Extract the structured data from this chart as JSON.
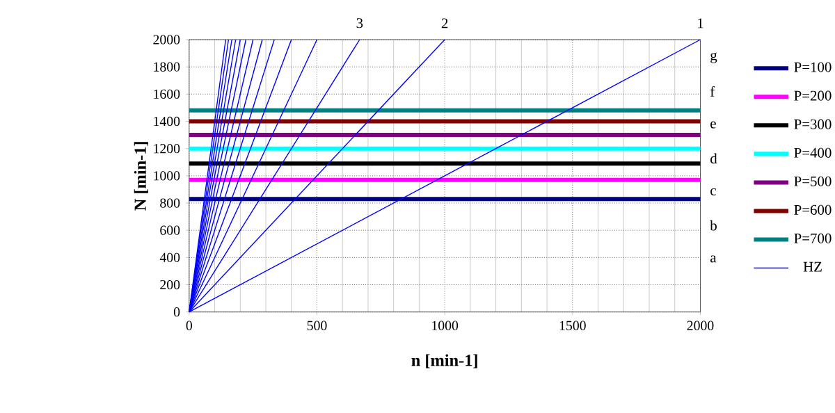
{
  "chart_data": {
    "type": "line",
    "xlabel": "n [min-1]",
    "ylabel": "N [min-1]",
    "xlim": [
      0,
      2000
    ],
    "ylim": [
      0,
      2000
    ],
    "xticks": [
      0,
      500,
      1000,
      1500,
      2000
    ],
    "yticks": [
      0,
      200,
      400,
      600,
      800,
      1000,
      1200,
      1400,
      1600,
      1800,
      2000
    ],
    "grid": true,
    "legend": "right",
    "annotations": [
      {
        "text": "1",
        "x": 2000,
        "y": 2000
      },
      {
        "text": "2",
        "x": 1000,
        "y": 2000
      },
      {
        "text": "3",
        "x": 667,
        "y": 2000
      },
      "a",
      "b",
      "c",
      "d",
      "e",
      "f",
      "g"
    ],
    "series": [
      {
        "name": "P=100",
        "color": "#000080",
        "x": [
          0,
          2000
        ],
        "values": [
          830,
          830
        ]
      },
      {
        "name": "P=200",
        "color": "#ff00ff",
        "x": [
          0,
          2000
        ],
        "values": [
          970,
          970
        ]
      },
      {
        "name": "P=300",
        "color": "#000000",
        "x": [
          0,
          2000
        ],
        "values": [
          1090,
          1090
        ]
      },
      {
        "name": "P=400",
        "color": "#00ffff",
        "x": [
          0,
          2000
        ],
        "values": [
          1200,
          1200
        ]
      },
      {
        "name": "P=500",
        "color": "#800080",
        "x": [
          0,
          2000
        ],
        "values": [
          1300,
          1300
        ]
      },
      {
        "name": "P=600",
        "color": "#800000",
        "x": [
          0,
          2000
        ],
        "values": [
          1400,
          1400
        ]
      },
      {
        "name": "P=700",
        "color": "#008080",
        "x": [
          0,
          2000
        ],
        "values": [
          1480,
          1480
        ]
      },
      {
        "name": "HZ",
        "color": "#0000ff",
        "x": [
          0,
          2000
        ],
        "values": [
          0,
          2000
        ]
      },
      {
        "color": "#0000ff",
        "x": [
          0,
          1000
        ],
        "values": [
          0,
          2000
        ]
      },
      {
        "color": "#0000ff",
        "x": [
          0,
          667
        ],
        "values": [
          0,
          2000
        ]
      },
      {
        "color": "#0000ff",
        "x": [
          0,
          500
        ],
        "values": [
          0,
          2000
        ]
      },
      {
        "color": "#0000ff",
        "x": [
          0,
          400
        ],
        "values": [
          0,
          2000
        ]
      },
      {
        "color": "#0000ff",
        "x": [
          0,
          333
        ],
        "values": [
          0,
          2000
        ]
      },
      {
        "color": "#0000ff",
        "x": [
          0,
          286
        ],
        "values": [
          0,
          2000
        ]
      },
      {
        "color": "#0000ff",
        "x": [
          0,
          250
        ],
        "values": [
          0,
          2000
        ]
      },
      {
        "color": "#0000ff",
        "x": [
          0,
          222
        ],
        "values": [
          0,
          2000
        ]
      },
      {
        "color": "#0000ff",
        "x": [
          0,
          200
        ],
        "values": [
          0,
          2000
        ]
      },
      {
        "color": "#0000ff",
        "x": [
          0,
          182
        ],
        "values": [
          0,
          2000
        ]
      },
      {
        "color": "#0000ff",
        "x": [
          0,
          167
        ],
        "values": [
          0,
          2000
        ]
      },
      {
        "color": "#0000ff",
        "x": [
          0,
          154
        ],
        "values": [
          0,
          2000
        ]
      },
      {
        "color": "#0000ff",
        "x": [
          0,
          143
        ],
        "values": [
          0,
          2000
        ]
      }
    ]
  }
}
